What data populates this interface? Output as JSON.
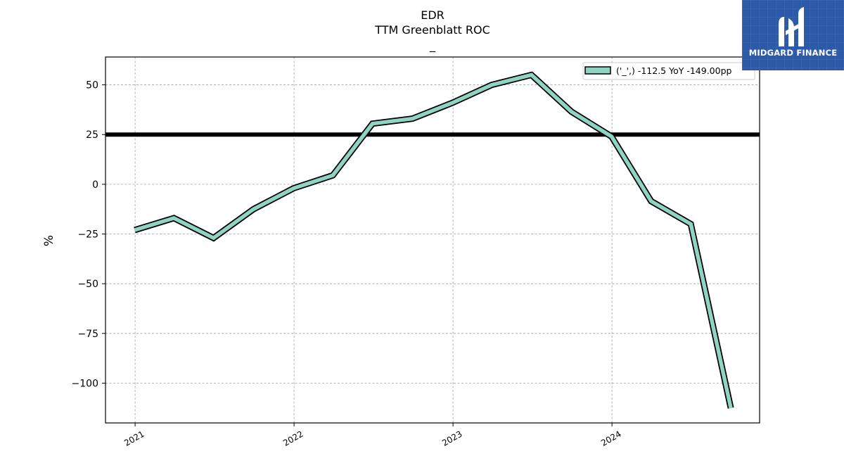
{
  "chart_data": {
    "type": "line",
    "title_lines": [
      "EDR",
      "TTM Greenblatt ROC",
      "_"
    ],
    "ylabel": "%",
    "xlabel": "",
    "ylim": [
      -120,
      64
    ],
    "yticks": [
      50,
      25,
      0,
      -25,
      -50,
      -75,
      -100
    ],
    "ytick_labels": [
      "50",
      "25",
      "0",
      "−25",
      "−50",
      "−75",
      "−100"
    ],
    "xlim": [
      "2020-10-25",
      "2024-12-05"
    ],
    "xticks": [
      "2021-01-01",
      "2022-01-01",
      "2023-01-01",
      "2024-01-01"
    ],
    "xtick_labels": [
      "2021",
      "2022",
      "2023",
      "2024"
    ],
    "grid": true,
    "hline": {
      "y": 25,
      "color": "#000000"
    },
    "legend": {
      "position": "top-right",
      "label": "('_',) -112.5 YoY -149.00pp"
    },
    "series": [
      {
        "color": "#8fd3c3",
        "x": [
          "2020-12-31",
          "2021-03-31",
          "2021-06-30",
          "2021-09-30",
          "2021-12-31",
          "2022-03-31",
          "2022-06-30",
          "2022-09-30",
          "2022-12-31",
          "2023-03-31",
          "2023-06-30",
          "2023-09-30",
          "2023-12-31",
          "2024-03-31",
          "2024-06-30",
          "2024-09-30"
        ],
        "y": [
          -23,
          -17,
          -27,
          -12.5,
          -2,
          4.5,
          30.5,
          33,
          41,
          50,
          55,
          36.5,
          24,
          -8.5,
          -20,
          -112.5
        ]
      }
    ]
  },
  "logo": {
    "text": "MIDGARD FINANCE",
    "bg": "#2c5aa8"
  }
}
